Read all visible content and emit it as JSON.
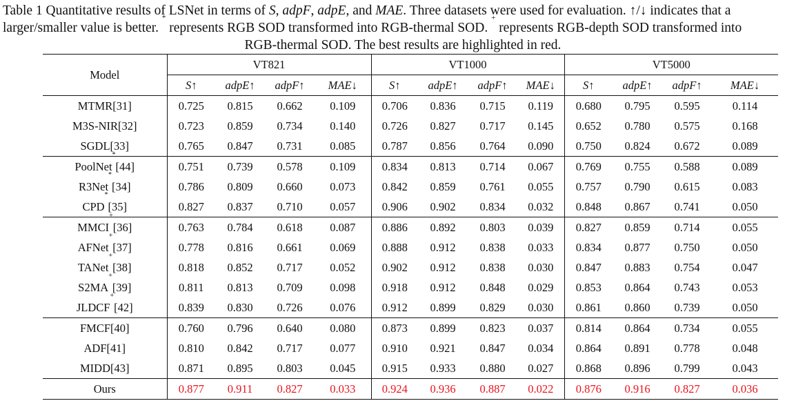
{
  "caption": {
    "line1_prefix": "Table 1 Quantitative results of LSNet in terms of ",
    "line1_s": "S",
    "line1_sep1": ", ",
    "line1_adpf": "adpF",
    "line1_sep2": ", ",
    "line1_adpe": "adpE",
    "line1_sep3": ", and ",
    "line1_mae": "MAE",
    "line1_suffix": ". Three datasets were used for evaluation. ↑/↓ indicates that a",
    "line2_prefix": "larger/smaller value is better. ",
    "line2_star": "*",
    "line2_mid": " represents RGB SOD transformed into RGB-thermal SOD. ",
    "line2_plus": "+",
    "line2_suffix": " represents RGB-depth SOD transformed into",
    "line3": "RGB-thermal SOD. The best results are highlighted in red."
  },
  "table": {
    "model_header": "Model",
    "datasets": [
      "VT821",
      "VT1000",
      "VT5000"
    ],
    "metrics": [
      "S↑",
      "adpE↑",
      "adpF↑",
      "MAE↓"
    ],
    "rows": [
      {
        "model": "MTMR[31]",
        "values": [
          "0.725",
          "0.815",
          "0.662",
          "0.109",
          "0.706",
          "0.836",
          "0.715",
          "0.119",
          "0.680",
          "0.795",
          "0.595",
          "0.114"
        ]
      },
      {
        "model": "M3S-NIR[32]",
        "values": [
          "0.723",
          "0.859",
          "0.734",
          "0.140",
          "0.726",
          "0.827",
          "0.717",
          "0.145",
          "0.652",
          "0.780",
          "0.575",
          "0.168"
        ]
      },
      {
        "model": "SGDL[33]",
        "values": [
          "0.765",
          "0.847",
          "0.731",
          "0.085",
          "0.787",
          "0.856",
          "0.764",
          "0.090",
          "0.750",
          "0.824",
          "0.672",
          "0.089"
        ]
      },
      {
        "model": "PoolNet[44]",
        "mark": "*",
        "values": [
          "0.751",
          "0.739",
          "0.578",
          "0.109",
          "0.834",
          "0.813",
          "0.714",
          "0.067",
          "0.769",
          "0.755",
          "0.588",
          "0.089"
        ]
      },
      {
        "model": "R3Net[34]",
        "mark": "*",
        "values": [
          "0.786",
          "0.809",
          "0.660",
          "0.073",
          "0.842",
          "0.859",
          "0.761",
          "0.055",
          "0.757",
          "0.790",
          "0.615",
          "0.083"
        ]
      },
      {
        "model": "CPD[35]",
        "mark": "*",
        "values": [
          "0.827",
          "0.837",
          "0.710",
          "0.057",
          "0.906",
          "0.902",
          "0.834",
          "0.032",
          "0.848",
          "0.867",
          "0.741",
          "0.050"
        ]
      },
      {
        "model": "MMCI[36]",
        "mark": "+",
        "values": [
          "0.763",
          "0.784",
          "0.618",
          "0.087",
          "0.886",
          "0.892",
          "0.803",
          "0.039",
          "0.827",
          "0.859",
          "0.714",
          "0.055"
        ]
      },
      {
        "model": "AFNet[37]",
        "mark": "+",
        "values": [
          "0.778",
          "0.816",
          "0.661",
          "0.069",
          "0.888",
          "0.912",
          "0.838",
          "0.033",
          "0.834",
          "0.877",
          "0.750",
          "0.050"
        ]
      },
      {
        "model": "TANet[38]",
        "mark": "+",
        "values": [
          "0.818",
          "0.852",
          "0.717",
          "0.052",
          "0.902",
          "0.912",
          "0.838",
          "0.030",
          "0.847",
          "0.883",
          "0.754",
          "0.047"
        ]
      },
      {
        "model": "S2MA[39]",
        "mark": "+",
        "values": [
          "0.811",
          "0.813",
          "0.709",
          "0.098",
          "0.918",
          "0.912",
          "0.848",
          "0.029",
          "0.853",
          "0.864",
          "0.743",
          "0.053"
        ]
      },
      {
        "model": "JLDCF[42]",
        "mark": "+",
        "values": [
          "0.839",
          "0.830",
          "0.726",
          "0.076",
          "0.912",
          "0.899",
          "0.829",
          "0.030",
          "0.861",
          "0.860",
          "0.739",
          "0.050"
        ]
      },
      {
        "model": "FMCF[40]",
        "values": [
          "0.760",
          "0.796",
          "0.640",
          "0.080",
          "0.873",
          "0.899",
          "0.823",
          "0.037",
          "0.814",
          "0.864",
          "0.734",
          "0.055"
        ]
      },
      {
        "model": "ADF[41]",
        "values": [
          "0.810",
          "0.842",
          "0.717",
          "0.077",
          "0.910",
          "0.921",
          "0.847",
          "0.034",
          "0.864",
          "0.891",
          "0.778",
          "0.048"
        ]
      },
      {
        "model": "MIDD[43]",
        "values": [
          "0.871",
          "0.895",
          "0.803",
          "0.045",
          "0.915",
          "0.933",
          "0.880",
          "0.027",
          "0.868",
          "0.896",
          "0.799",
          "0.043"
        ]
      },
      {
        "model": "Ours",
        "best": true,
        "values": [
          "0.877",
          "0.911",
          "0.827",
          "0.033",
          "0.924",
          "0.936",
          "0.887",
          "0.022",
          "0.876",
          "0.916",
          "0.827",
          "0.036"
        ]
      }
    ],
    "group_starts": [
      3,
      6,
      11,
      14
    ]
  },
  "colors": {
    "best": "#e8141e",
    "text": "#111111"
  }
}
